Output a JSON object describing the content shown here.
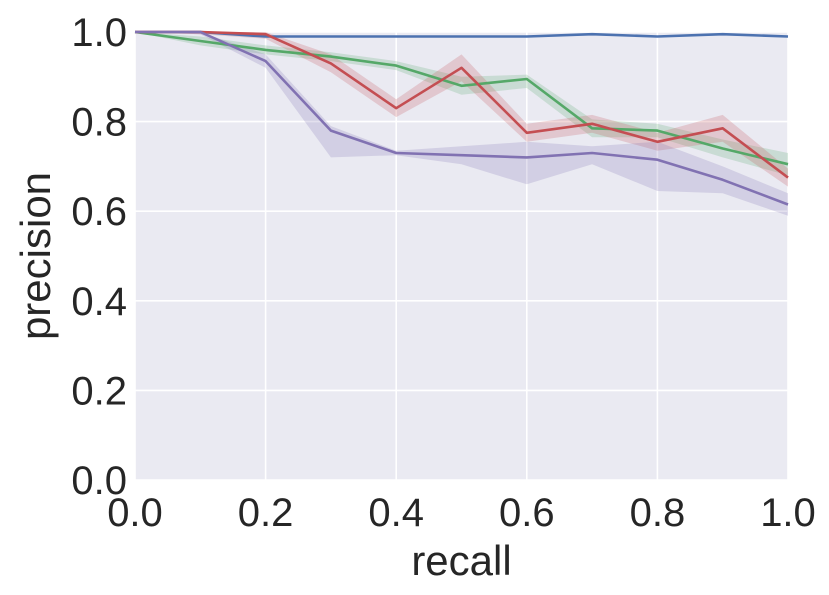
{
  "chart_data": {
    "type": "line",
    "title": "",
    "xlabel": "recall",
    "ylabel": "precision",
    "xlim": [
      0.0,
      1.0
    ],
    "ylim": [
      0.0,
      1.0
    ],
    "xticks": [
      "0.0",
      "0.2",
      "0.4",
      "0.6",
      "0.8",
      "1.0"
    ],
    "yticks": [
      "0.0",
      "0.2",
      "0.4",
      "0.6",
      "0.8",
      "1.0"
    ],
    "grid": true,
    "legend": "none",
    "background_color": "#EAEAF2",
    "grid_color": "#FFFFFF",
    "series": [
      {
        "color": "#4C72B0",
        "x": [
          0.0,
          0.1,
          0.2,
          0.3,
          0.4,
          0.5,
          0.6,
          0.7,
          0.8,
          0.9,
          1.0
        ],
        "y": [
          1.0,
          1.0,
          0.99,
          0.99,
          0.99,
          0.99,
          0.99,
          0.995,
          0.99,
          0.995,
          0.99
        ],
        "lower": [
          1.0,
          1.0,
          0.99,
          0.99,
          0.99,
          0.99,
          0.99,
          0.995,
          0.99,
          0.995,
          0.99
        ],
        "upper": [
          1.0,
          1.0,
          0.99,
          0.99,
          0.99,
          0.99,
          0.99,
          0.995,
          0.99,
          0.995,
          0.99
        ]
      },
      {
        "color": "#55A868",
        "x": [
          0.0,
          0.1,
          0.2,
          0.3,
          0.4,
          0.5,
          0.6,
          0.7,
          0.8,
          0.9,
          1.0
        ],
        "y": [
          1.0,
          0.98,
          0.96,
          0.945,
          0.925,
          0.88,
          0.895,
          0.785,
          0.78,
          0.74,
          0.705
        ],
        "lower": [
          1.0,
          0.97,
          0.95,
          0.935,
          0.915,
          0.86,
          0.875,
          0.765,
          0.765,
          0.72,
          0.68
        ],
        "upper": [
          1.0,
          0.99,
          0.97,
          0.955,
          0.935,
          0.9,
          0.905,
          0.805,
          0.795,
          0.76,
          0.73
        ]
      },
      {
        "color": "#C44E52",
        "x": [
          0.0,
          0.1,
          0.2,
          0.3,
          0.4,
          0.5,
          0.6,
          0.7,
          0.8,
          0.9,
          1.0
        ],
        "y": [
          1.0,
          1.0,
          0.995,
          0.93,
          0.83,
          0.92,
          0.775,
          0.795,
          0.755,
          0.785,
          0.675
        ],
        "lower": [
          1.0,
          0.995,
          0.985,
          0.91,
          0.81,
          0.89,
          0.755,
          0.775,
          0.735,
          0.755,
          0.655
        ],
        "upper": [
          1.0,
          1.0,
          1.0,
          0.95,
          0.85,
          0.95,
          0.795,
          0.815,
          0.775,
          0.815,
          0.695
        ]
      },
      {
        "color": "#8172B2",
        "x": [
          0.0,
          0.1,
          0.2,
          0.3,
          0.4,
          0.5,
          0.6,
          0.7,
          0.8,
          0.9,
          1.0
        ],
        "y": [
          1.0,
          1.0,
          0.935,
          0.78,
          0.73,
          0.725,
          0.72,
          0.73,
          0.715,
          0.67,
          0.615
        ],
        "lower": [
          1.0,
          0.995,
          0.92,
          0.72,
          0.725,
          0.705,
          0.66,
          0.705,
          0.645,
          0.64,
          0.59
        ],
        "upper": [
          1.0,
          1.0,
          0.95,
          0.79,
          0.735,
          0.745,
          0.755,
          0.745,
          0.755,
          0.7,
          0.64
        ]
      }
    ]
  }
}
